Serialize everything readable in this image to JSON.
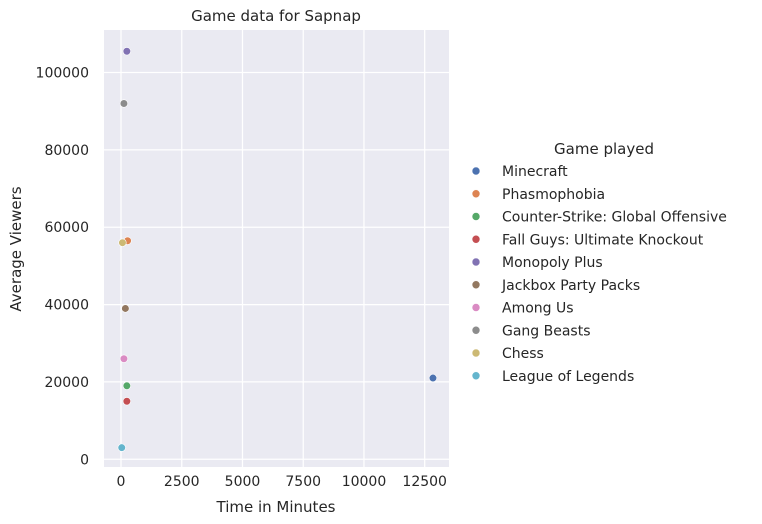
{
  "chart_data": {
    "type": "scatter",
    "title": "Game data for Sapnap",
    "xlabel": "Time in Minutes",
    "ylabel": "Average Viewers",
    "xlim": [
      -700,
      13500
    ],
    "ylim": [
      -2000,
      111000
    ],
    "xticks": [
      0,
      2500,
      5000,
      7500,
      10000,
      12500
    ],
    "yticks": [
      0,
      20000,
      40000,
      60000,
      80000,
      100000
    ],
    "grid": true,
    "legend": {
      "title": "Game played",
      "position": "right"
    },
    "series": [
      {
        "name": "Minecraft",
        "color": "#4c72b0",
        "points": [
          [
            12840,
            21000
          ]
        ]
      },
      {
        "name": "Phasmophobia",
        "color": "#dd8452",
        "points": [
          [
            270,
            56500
          ]
        ]
      },
      {
        "name": "Counter-Strike: Global Offensive",
        "color": "#55a868",
        "points": [
          [
            240,
            19000
          ]
        ]
      },
      {
        "name": "Fall Guys: Ultimate Knockout",
        "color": "#c44e52",
        "points": [
          [
            240,
            15000
          ]
        ]
      },
      {
        "name": "Monopoly Plus",
        "color": "#8172b3",
        "points": [
          [
            240,
            105500
          ]
        ]
      },
      {
        "name": "Jackbox Party Packs",
        "color": "#937860",
        "points": [
          [
            180,
            39000
          ]
        ]
      },
      {
        "name": "Among Us",
        "color": "#da8bc3",
        "points": [
          [
            120,
            26000
          ]
        ]
      },
      {
        "name": "Gang Beasts",
        "color": "#8c8c8c",
        "points": [
          [
            120,
            92000
          ]
        ]
      },
      {
        "name": "Chess",
        "color": "#ccb974",
        "points": [
          [
            60,
            56000
          ]
        ]
      },
      {
        "name": "League of Legends",
        "color": "#64b5cd",
        "points": [
          [
            30,
            3000
          ]
        ]
      }
    ]
  }
}
